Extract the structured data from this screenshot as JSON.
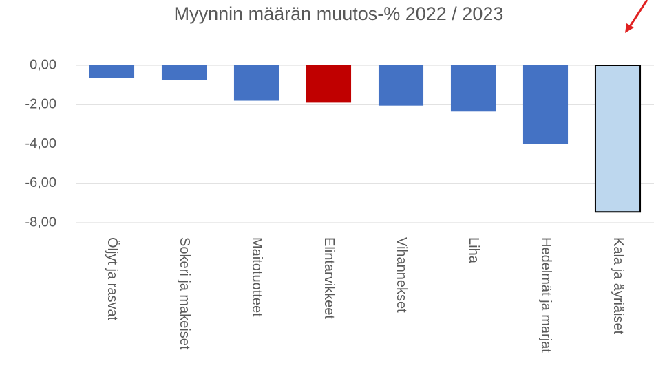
{
  "chart_data": {
    "type": "bar",
    "title": "Myynnin määrän muutos-% 2022 / 2023",
    "categories": [
      "Öljyt ja rasvat",
      "Sokeri ja makeiset",
      "Maitotuotteet",
      "Elintarvikkeet",
      "Vihannekset",
      "Liha",
      "Hedelmät ja marjat",
      "Kala ja äyriäiset"
    ],
    "values": [
      -0.65,
      -0.75,
      -1.8,
      -1.9,
      -2.05,
      -2.35,
      -4.0,
      -7.45
    ],
    "colors": [
      "#4472c4",
      "#4472c4",
      "#4472c4",
      "#c00000",
      "#4472c4",
      "#4472c4",
      "#4472c4",
      "#bdd7ee"
    ],
    "edgecolors": [
      null,
      null,
      null,
      null,
      null,
      null,
      null,
      "#000000"
    ],
    "ylim": [
      -8,
      0
    ],
    "yticks": [
      {
        "value": 0,
        "label": "0,00"
      },
      {
        "value": -2,
        "label": "-2,00"
      },
      {
        "value": -4,
        "label": "-4,00"
      },
      {
        "value": -6,
        "label": "-6,00"
      },
      {
        "value": -8,
        "label": "-8,00"
      }
    ],
    "grid": true
  }
}
